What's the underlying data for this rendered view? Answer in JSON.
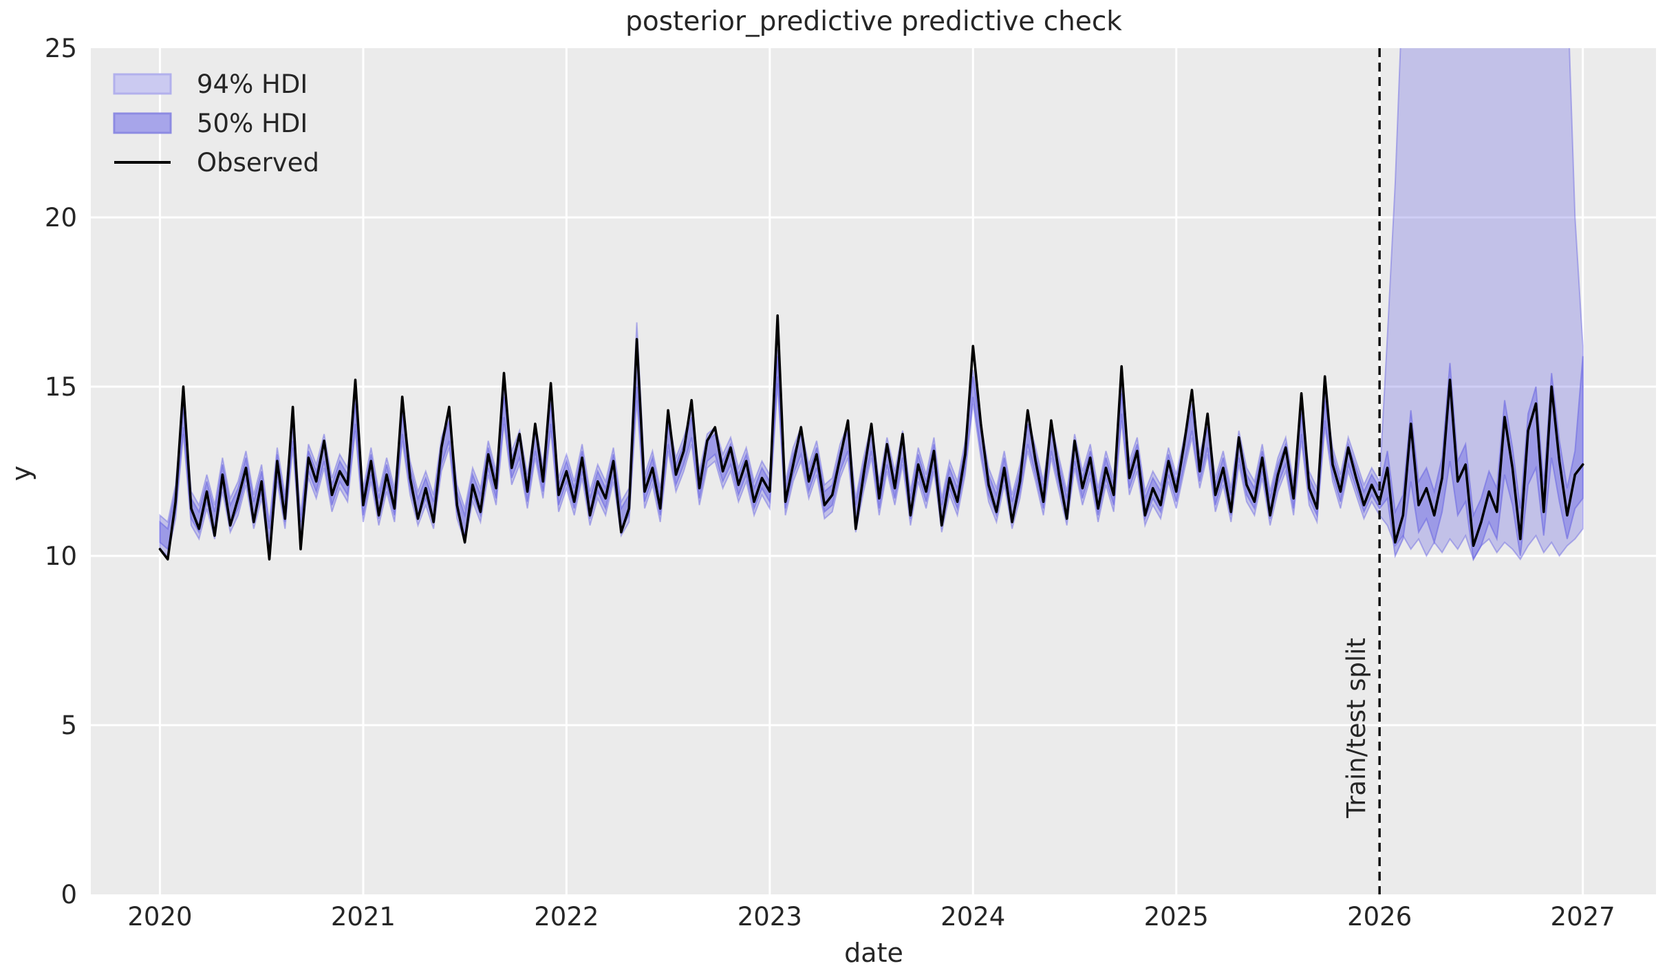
{
  "figure": {
    "background": "#ffffff",
    "axes_background": "#ebebeb",
    "grid_color": "#ffffff",
    "text_color": "#262626"
  },
  "chart_data": {
    "type": "line",
    "title": "posterior_predictive predictive check",
    "xlabel": "date",
    "ylabel": "y",
    "xlim": [
      2019.66,
      2027.36
    ],
    "ylim": [
      0,
      25
    ],
    "xticks": [
      "2020",
      "2021",
      "2022",
      "2023",
      "2024",
      "2025",
      "2026",
      "2027"
    ],
    "xtick_values": [
      2020,
      2021,
      2022,
      2023,
      2024,
      2025,
      2026,
      2027
    ],
    "yticks": [
      "0",
      "5",
      "10",
      "15",
      "20",
      "25"
    ],
    "ytick_values": [
      0,
      5,
      10,
      15,
      20,
      25
    ],
    "grid": true,
    "legend_position": "upper left",
    "legend": [
      {
        "label": "94% HDI",
        "swatch": "band-light",
        "fill": "#cbcaf1",
        "border": "#b2b0ec"
      },
      {
        "label": "50% HDI",
        "swatch": "band-dark",
        "fill": "#a7a5ea",
        "border": "#8d8be2"
      },
      {
        "label": "Observed",
        "swatch": "line",
        "color": "#000000"
      }
    ],
    "split": {
      "x": 2026.0,
      "label": "Train/test split"
    },
    "band_color": "#6e6ae4",
    "band94_alpha": 0.32,
    "band50_alpha": 0.45,
    "observed_color": "#000000",
    "x0": 2020.0,
    "dx": 0.038462,
    "observed": [
      10.2,
      9.9,
      11.6,
      15.0,
      11.4,
      10.8,
      11.9,
      10.6,
      12.4,
      10.9,
      11.7,
      12.6,
      11.0,
      12.2,
      9.9,
      12.8,
      11.1,
      14.4,
      10.2,
      12.9,
      12.2,
      13.4,
      11.8,
      12.5,
      12.1,
      15.2,
      11.5,
      12.8,
      11.2,
      12.4,
      11.4,
      14.7,
      12.3,
      11.1,
      12.0,
      11.0,
      13.2,
      14.4,
      11.5,
      10.4,
      12.1,
      11.3,
      13.0,
      12.0,
      15.4,
      12.6,
      13.6,
      11.9,
      13.9,
      12.2,
      15.1,
      11.8,
      12.5,
      11.6,
      12.9,
      11.2,
      12.2,
      11.7,
      12.8,
      10.7,
      11.4,
      16.4,
      11.9,
      12.6,
      11.4,
      14.3,
      12.4,
      13.1,
      14.6,
      12.0,
      13.4,
      13.8,
      12.5,
      13.2,
      12.1,
      12.8,
      11.6,
      12.3,
      11.9,
      17.1,
      11.6,
      12.7,
      13.8,
      12.2,
      13.0,
      11.5,
      11.8,
      12.9,
      14.0,
      10.8,
      12.4,
      13.9,
      11.7,
      13.3,
      12.0,
      13.6,
      11.2,
      12.7,
      11.9,
      13.1,
      10.9,
      12.3,
      11.6,
      13.0,
      16.2,
      13.9,
      12.1,
      11.3,
      12.6,
      11.0,
      12.2,
      14.3,
      12.8,
      11.6,
      14.0,
      12.4,
      11.1,
      13.4,
      12.0,
      12.9,
      11.4,
      12.6,
      11.8,
      15.6,
      12.3,
      13.1,
      11.2,
      12.0,
      11.5,
      12.8,
      11.9,
      13.3,
      14.9,
      12.5,
      14.2,
      11.8,
      12.6,
      11.3,
      13.5,
      12.1,
      11.6,
      12.9,
      11.2,
      12.4,
      13.2,
      11.7,
      14.8,
      12.0,
      11.4,
      15.3,
      12.7,
      11.9,
      13.2,
      12.3,
      11.5,
      12.1,
      11.6,
      12.6,
      10.4,
      11.2,
      13.9,
      11.5,
      12.0,
      11.2,
      12.3,
      15.2,
      12.2,
      12.7,
      10.3,
      11.0,
      11.9,
      11.3,
      14.1,
      12.6,
      10.5,
      13.7,
      14.5,
      11.3,
      15.0,
      12.8,
      11.2,
      12.4,
      12.7
    ],
    "hdi94": {
      "lower": [
        10.2,
        10.0,
        11.1,
        13.6,
        10.9,
        10.5,
        11.4,
        10.5,
        11.9,
        10.7,
        11.2,
        12.1,
        10.8,
        11.7,
        10.0,
        12.2,
        10.8,
        13.2,
        10.2,
        12.3,
        11.7,
        12.6,
        11.3,
        12.0,
        11.6,
        13.7,
        11.0,
        12.2,
        10.9,
        11.9,
        11.0,
        13.4,
        11.8,
        10.9,
        11.5,
        10.8,
        12.5,
        13.2,
        11.1,
        10.4,
        11.6,
        11.0,
        12.4,
        11.5,
        13.9,
        12.1,
        12.7,
        11.4,
        12.9,
        11.7,
        13.7,
        11.3,
        12.0,
        11.2,
        12.3,
        10.9,
        11.7,
        11.2,
        12.2,
        10.6,
        11.0,
        14.6,
        11.4,
        12.1,
        11.0,
        13.1,
        11.9,
        12.5,
        13.3,
        11.5,
        12.6,
        12.8,
        12.0,
        12.5,
        11.6,
        12.2,
        11.2,
        11.8,
        11.4,
        15.1,
        11.2,
        12.2,
        12.8,
        11.7,
        12.4,
        11.1,
        11.3,
        12.3,
        12.9,
        10.7,
        11.9,
        12.9,
        11.2,
        12.5,
        11.5,
        12.7,
        10.9,
        12.2,
        11.4,
        12.5,
        10.7,
        11.8,
        11.2,
        12.4,
        14.5,
        12.9,
        11.6,
        11.0,
        12.1,
        10.8,
        11.7,
        13.1,
        12.2,
        11.2,
        12.9,
        11.9,
        10.9,
        12.6,
        11.5,
        12.3,
        11.0,
        12.1,
        11.3,
        14.0,
        11.8,
        12.5,
        10.9,
        11.5,
        11.1,
        12.2,
        11.4,
        12.5,
        13.5,
        12.0,
        13.0,
        11.3,
        12.1,
        11.0,
        12.7,
        11.6,
        11.2,
        12.3,
        10.9,
        11.9,
        12.5,
        11.2,
        13.4,
        11.5,
        11.0,
        13.8,
        12.2,
        11.4,
        12.5,
        11.8,
        11.1,
        11.6,
        11.2,
        10.9,
        10.3,
        10.6,
        10.2,
        10.5,
        10.0,
        10.4,
        10.1,
        10.5,
        10.2,
        10.6,
        9.9,
        10.3,
        10.5,
        10.1,
        10.4,
        10.2,
        9.9,
        10.3,
        10.6,
        10.1,
        10.4,
        10.0,
        10.3,
        10.5,
        10.8
      ],
      "upper": [
        11.2,
        11.0,
        12.1,
        14.6,
        11.9,
        11.5,
        12.4,
        11.5,
        12.9,
        11.7,
        12.2,
        13.1,
        11.8,
        12.7,
        11.0,
        13.2,
        11.8,
        14.2,
        11.2,
        13.3,
        12.7,
        13.6,
        12.3,
        13.0,
        12.6,
        14.7,
        12.0,
        13.2,
        11.9,
        12.9,
        12.0,
        14.4,
        12.8,
        11.9,
        12.5,
        11.8,
        13.5,
        14.2,
        12.1,
        11.4,
        12.6,
        12.0,
        13.4,
        12.5,
        14.9,
        13.1,
        13.7,
        12.4,
        13.9,
        12.7,
        14.7,
        12.3,
        13.0,
        12.2,
        13.3,
        11.9,
        12.7,
        12.2,
        13.2,
        11.6,
        12.0,
        16.9,
        12.4,
        13.1,
        12.0,
        14.1,
        12.9,
        13.5,
        14.3,
        12.5,
        13.6,
        13.8,
        13.0,
        13.5,
        12.6,
        13.2,
        12.2,
        12.8,
        12.4,
        16.1,
        12.2,
        13.2,
        13.8,
        12.7,
        13.4,
        12.1,
        12.3,
        13.3,
        13.9,
        11.7,
        12.9,
        13.9,
        12.2,
        13.5,
        12.5,
        13.7,
        11.9,
        13.2,
        12.4,
        13.5,
        11.7,
        12.8,
        12.2,
        13.4,
        15.5,
        13.9,
        12.6,
        12.0,
        13.1,
        11.8,
        12.7,
        14.1,
        13.2,
        12.2,
        13.9,
        12.9,
        11.9,
        13.6,
        12.5,
        13.3,
        12.0,
        13.1,
        12.3,
        15.0,
        12.8,
        13.5,
        11.9,
        12.5,
        12.1,
        13.2,
        12.4,
        13.5,
        14.5,
        13.0,
        14.0,
        12.3,
        13.1,
        12.0,
        13.7,
        12.6,
        12.2,
        13.3,
        11.9,
        12.9,
        13.5,
        12.2,
        14.4,
        12.5,
        12.0,
        14.8,
        13.2,
        12.4,
        13.5,
        12.8,
        12.1,
        12.6,
        12.2,
        16.5,
        21.0,
        27.0,
        32.0,
        36.0,
        39.0,
        41.0,
        42.0,
        43.0,
        43.0,
        44.0,
        43.0,
        44.0,
        43.0,
        44.0,
        43.0,
        42.0,
        43.0,
        42.0,
        41.0,
        40.0,
        38.0,
        34.0,
        27.0,
        20.0,
        16.2
      ]
    },
    "hdi50": {
      "lower": [
        10.4,
        10.2,
        11.3,
        13.8,
        11.1,
        10.7,
        11.6,
        10.7,
        12.1,
        10.9,
        11.4,
        12.3,
        11.0,
        11.9,
        10.2,
        12.4,
        11.0,
        13.4,
        10.4,
        12.5,
        11.9,
        12.8,
        11.5,
        12.2,
        11.8,
        13.9,
        11.2,
        12.4,
        11.1,
        12.1,
        11.2,
        13.6,
        12.0,
        11.1,
        11.7,
        11.0,
        12.7,
        13.4,
        11.3,
        10.6,
        11.8,
        11.2,
        12.6,
        11.7,
        14.1,
        12.3,
        12.9,
        11.6,
        13.1,
        11.9,
        13.9,
        11.5,
        12.2,
        11.4,
        12.5,
        11.1,
        11.9,
        11.4,
        12.4,
        10.8,
        11.2,
        15.0,
        11.6,
        12.3,
        11.2,
        13.3,
        12.1,
        12.7,
        13.5,
        11.7,
        12.8,
        13.0,
        12.2,
        12.7,
        11.8,
        12.4,
        11.4,
        12.0,
        11.6,
        15.3,
        11.4,
        12.4,
        13.0,
        11.9,
        12.6,
        11.3,
        11.5,
        12.5,
        13.1,
        10.9,
        12.1,
        13.1,
        11.4,
        12.7,
        11.7,
        12.9,
        11.1,
        12.4,
        11.6,
        12.7,
        10.9,
        12.0,
        11.4,
        12.6,
        14.7,
        13.1,
        11.8,
        11.2,
        12.3,
        11.0,
        11.9,
        13.3,
        12.4,
        11.4,
        13.1,
        12.1,
        11.1,
        12.8,
        11.7,
        12.5,
        11.2,
        12.3,
        11.5,
        14.2,
        12.0,
        12.7,
        11.1,
        11.7,
        11.3,
        12.4,
        11.6,
        12.7,
        13.7,
        12.2,
        13.2,
        11.5,
        12.3,
        11.2,
        12.9,
        11.8,
        11.4,
        12.5,
        11.1,
        12.1,
        12.7,
        11.4,
        13.6,
        11.7,
        11.2,
        14.0,
        12.4,
        11.6,
        12.7,
        12.0,
        11.3,
        11.8,
        11.4,
        11.7,
        10.0,
        10.5,
        12.2,
        10.7,
        11.1,
        10.4,
        11.3,
        12.8,
        11.2,
        11.6,
        9.9,
        10.3,
        11.0,
        10.5,
        12.4,
        11.5,
        10.0,
        12.1,
        12.6,
        10.6,
        12.9,
        11.6,
        10.5,
        11.4,
        11.7
      ],
      "upper": [
        11.0,
        10.8,
        11.9,
        14.4,
        11.7,
        11.3,
        12.2,
        11.3,
        12.7,
        11.5,
        12.0,
        12.9,
        11.6,
        12.5,
        10.8,
        13.0,
        11.6,
        14.0,
        11.0,
        13.1,
        12.5,
        13.4,
        12.1,
        12.8,
        12.4,
        14.5,
        11.8,
        13.0,
        11.7,
        12.7,
        11.8,
        14.2,
        12.6,
        11.7,
        12.3,
        11.6,
        13.3,
        14.0,
        11.9,
        11.2,
        12.4,
        11.8,
        13.2,
        12.3,
        14.7,
        12.9,
        13.5,
        12.2,
        13.7,
        12.5,
        14.5,
        12.1,
        12.8,
        12.0,
        13.1,
        11.7,
        12.5,
        12.0,
        13.0,
        11.4,
        11.8,
        16.3,
        12.2,
        12.9,
        11.8,
        13.9,
        12.7,
        13.3,
        14.1,
        12.3,
        13.4,
        13.6,
        12.8,
        13.3,
        12.4,
        13.0,
        12.0,
        12.6,
        12.2,
        15.9,
        12.0,
        13.0,
        13.6,
        12.5,
        13.2,
        11.9,
        12.1,
        13.1,
        13.7,
        11.5,
        12.7,
        13.7,
        12.0,
        13.3,
        12.3,
        13.5,
        11.7,
        13.0,
        12.2,
        13.3,
        11.5,
        12.6,
        12.0,
        13.2,
        15.3,
        13.7,
        12.4,
        11.8,
        12.9,
        11.6,
        12.5,
        13.9,
        13.0,
        12.0,
        13.7,
        12.7,
        11.7,
        13.4,
        12.3,
        13.1,
        11.8,
        12.9,
        12.1,
        14.8,
        12.6,
        13.3,
        11.7,
        12.3,
        11.9,
        13.0,
        12.2,
        13.3,
        14.3,
        12.8,
        13.8,
        12.1,
        12.9,
        11.8,
        13.5,
        12.4,
        12.0,
        13.1,
        11.7,
        12.7,
        13.3,
        12.0,
        14.2,
        12.3,
        11.8,
        14.6,
        13.0,
        12.2,
        13.3,
        12.6,
        11.9,
        12.4,
        12.0,
        13.1,
        11.3,
        11.8,
        14.3,
        12.2,
        12.6,
        11.9,
        12.9,
        15.7,
        12.8,
        13.3,
        11.2,
        11.7,
        12.5,
        12.0,
        14.6,
        13.2,
        11.4,
        14.2,
        15.0,
        12.1,
        15.4,
        13.4,
        12.0,
        13.1,
        15.9
      ]
    }
  }
}
